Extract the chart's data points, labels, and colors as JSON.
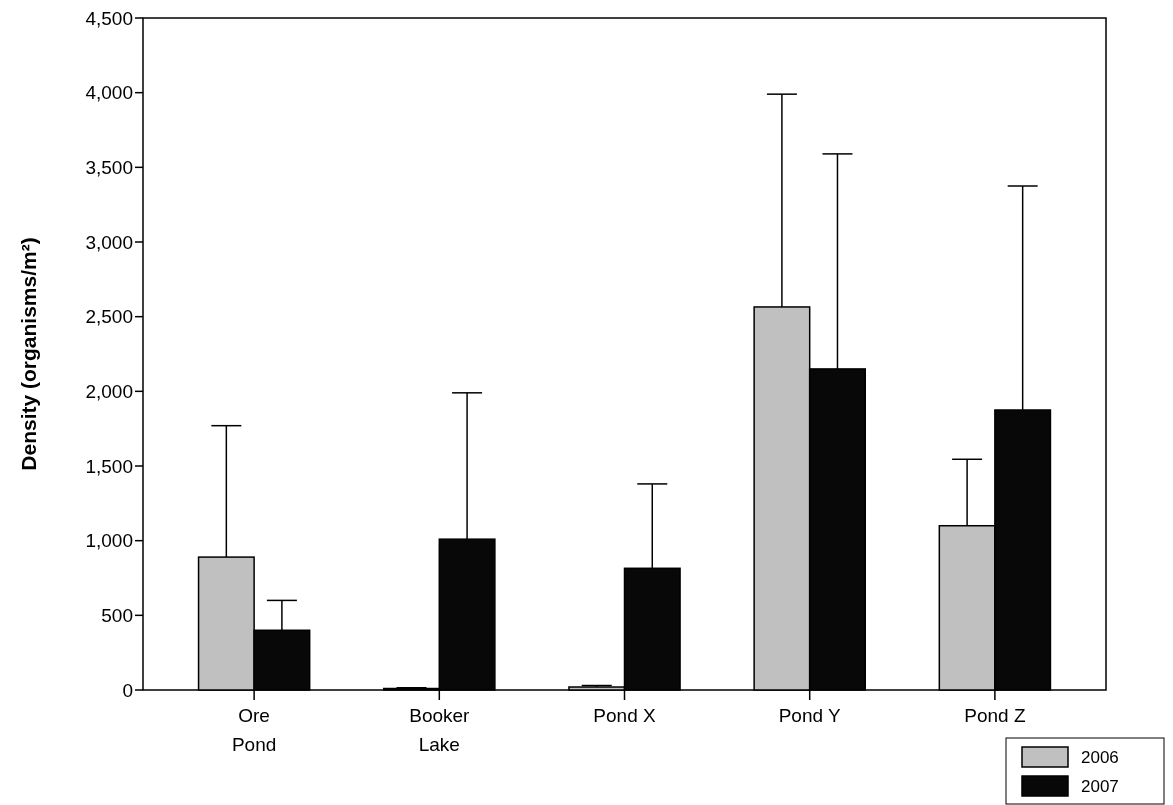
{
  "chart_data": {
    "type": "bar",
    "ylabel": "Density (organisms/m²)",
    "categories": [
      "Ore\nPond",
      "Booker\nLake",
      "Pond X",
      "Pond Y",
      "Pond Z"
    ],
    "series": [
      {
        "name": "2006",
        "color": "#c0c0c0",
        "values": [
          890,
          10,
          20,
          2565,
          1100
        ],
        "errors": [
          [
            890,
            1770
          ],
          [
            10,
            15
          ],
          [
            20,
            30
          ],
          [
            2565,
            3990
          ],
          [
            1100,
            1545
          ]
        ]
      },
      {
        "name": "2007",
        "color": "#080808",
        "values": [
          400,
          1010,
          815,
          2150,
          1875
        ],
        "errors": [
          [
            400,
            600
          ],
          [
            1010,
            1990
          ],
          [
            815,
            1380
          ],
          [
            2150,
            3590
          ],
          [
            1875,
            3375
          ]
        ]
      }
    ],
    "ylim": [
      0,
      4500
    ],
    "yticks": [
      {
        "value": 0,
        "label": "0"
      },
      {
        "value": 500,
        "label": "500"
      },
      {
        "value": 1000,
        "label": "1,000"
      },
      {
        "value": 1500,
        "label": "1,500"
      },
      {
        "value": 2000,
        "label": "2,000"
      },
      {
        "value": 2500,
        "label": "2,500"
      },
      {
        "value": 3000,
        "label": "3,000"
      },
      {
        "value": 3500,
        "label": "3,500"
      },
      {
        "value": 4000,
        "label": "4,000"
      },
      {
        "value": 4500,
        "label": "4,500"
      }
    ],
    "legend": "bottom right"
  }
}
